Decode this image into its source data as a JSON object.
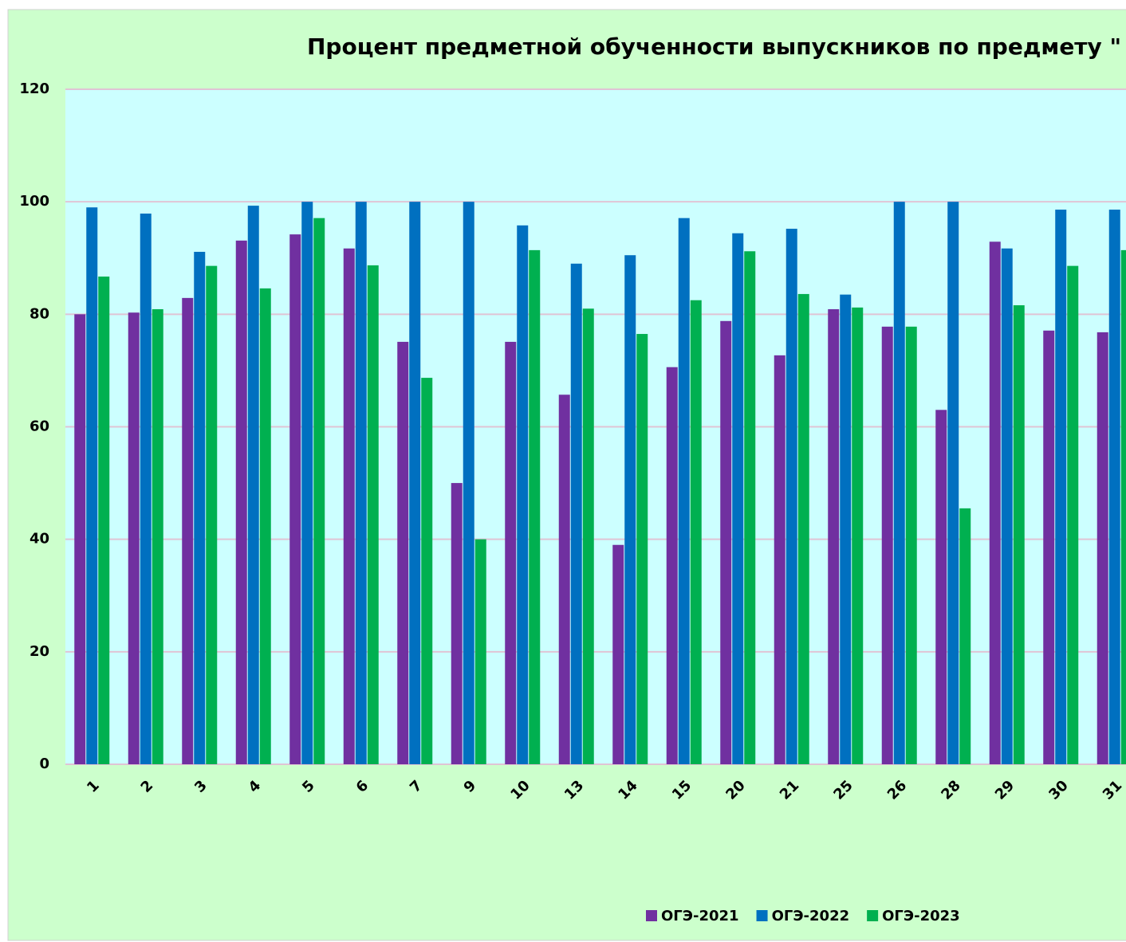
{
  "chart_data": {
    "type": "bar",
    "title": "Процент предметной обученности выпускников по предмету \"",
    "categories": [
      "1",
      "2",
      "3",
      "4",
      "5",
      "6",
      "7",
      "9",
      "10",
      "13",
      "14",
      "15",
      "20",
      "21",
      "25",
      "26",
      "28",
      "29",
      "30",
      "31"
    ],
    "series": [
      {
        "name": "ОГЭ-2021",
        "color": "#7030a0",
        "values": [
          80,
          80.3,
          82.9,
          93.1,
          94.2,
          91.7,
          75.1,
          50,
          75.1,
          65.7,
          39,
          70.6,
          78.8,
          72.7,
          80.9,
          77.8,
          63,
          92.9,
          77.1,
          76.8
        ]
      },
      {
        "name": "ОГЭ-2022",
        "color": "#0070c0",
        "values": [
          99,
          97.9,
          91.1,
          99.3,
          100,
          100,
          100,
          100,
          95.8,
          89,
          90.5,
          97.1,
          94.4,
          95.2,
          83.5,
          100,
          100,
          91.7,
          98.6,
          98.6
        ]
      },
      {
        "name": "ОГЭ-2023",
        "color": "#00b050",
        "values": [
          86.7,
          80.9,
          88.6,
          84.6,
          97.1,
          88.7,
          68.7,
          40,
          91.4,
          81,
          76.5,
          82.5,
          91.2,
          83.6,
          81.2,
          77.8,
          45.5,
          81.6,
          88.6,
          91.4
        ]
      }
    ],
    "ylim": [
      0,
      120
    ],
    "yticks": [
      0,
      20,
      40,
      60,
      80,
      100,
      120
    ],
    "grid": true,
    "legend": "bottom"
  }
}
